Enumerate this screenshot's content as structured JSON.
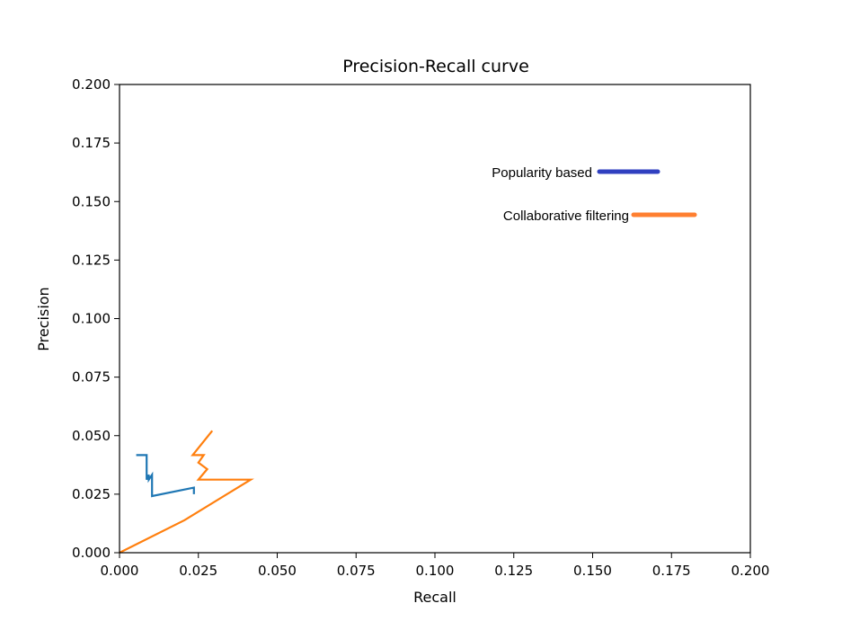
{
  "chart_data": {
    "type": "line",
    "title": "Precision-Recall curve",
    "xlabel": "Recall",
    "ylabel": "Precision",
    "xlim": [
      0.0,
      0.2
    ],
    "ylim": [
      0.0,
      0.2
    ],
    "xticks": [
      "0.000",
      "0.025",
      "0.050",
      "0.075",
      "0.100",
      "0.125",
      "0.150",
      "0.175",
      "0.200"
    ],
    "yticks": [
      "0.000",
      "0.025",
      "0.050",
      "0.075",
      "0.100",
      "0.125",
      "0.150",
      "0.175",
      "0.200"
    ],
    "grid": false,
    "series": [
      {
        "name": "Popularity based",
        "color": "#1f77b4",
        "legend_color": "#3040c0",
        "x": [
          0.0053,
          0.0086,
          0.0086,
          0.0093,
          0.0093,
          0.0103,
          0.0103,
          0.0236,
          0.0236
        ],
        "y": [
          0.0417,
          0.0417,
          0.0312,
          0.0333,
          0.0312,
          0.0333,
          0.0242,
          0.0278,
          0.025
        ]
      },
      {
        "name": "Collaborative filtering",
        "color": "#ff7f0e",
        "legend_color": "#ff7f30",
        "x": [
          0.0,
          0.0206,
          0.0416,
          0.025,
          0.0278,
          0.025,
          0.0267,
          0.0232,
          0.0294
        ],
        "y": [
          0.0,
          0.0139,
          0.0312,
          0.0312,
          0.0357,
          0.0385,
          0.0417,
          0.0417,
          0.0521
        ]
      }
    ],
    "legend": {
      "placement": "top-right",
      "entries": [
        "Popularity based",
        "Collaborative filtering"
      ]
    }
  }
}
